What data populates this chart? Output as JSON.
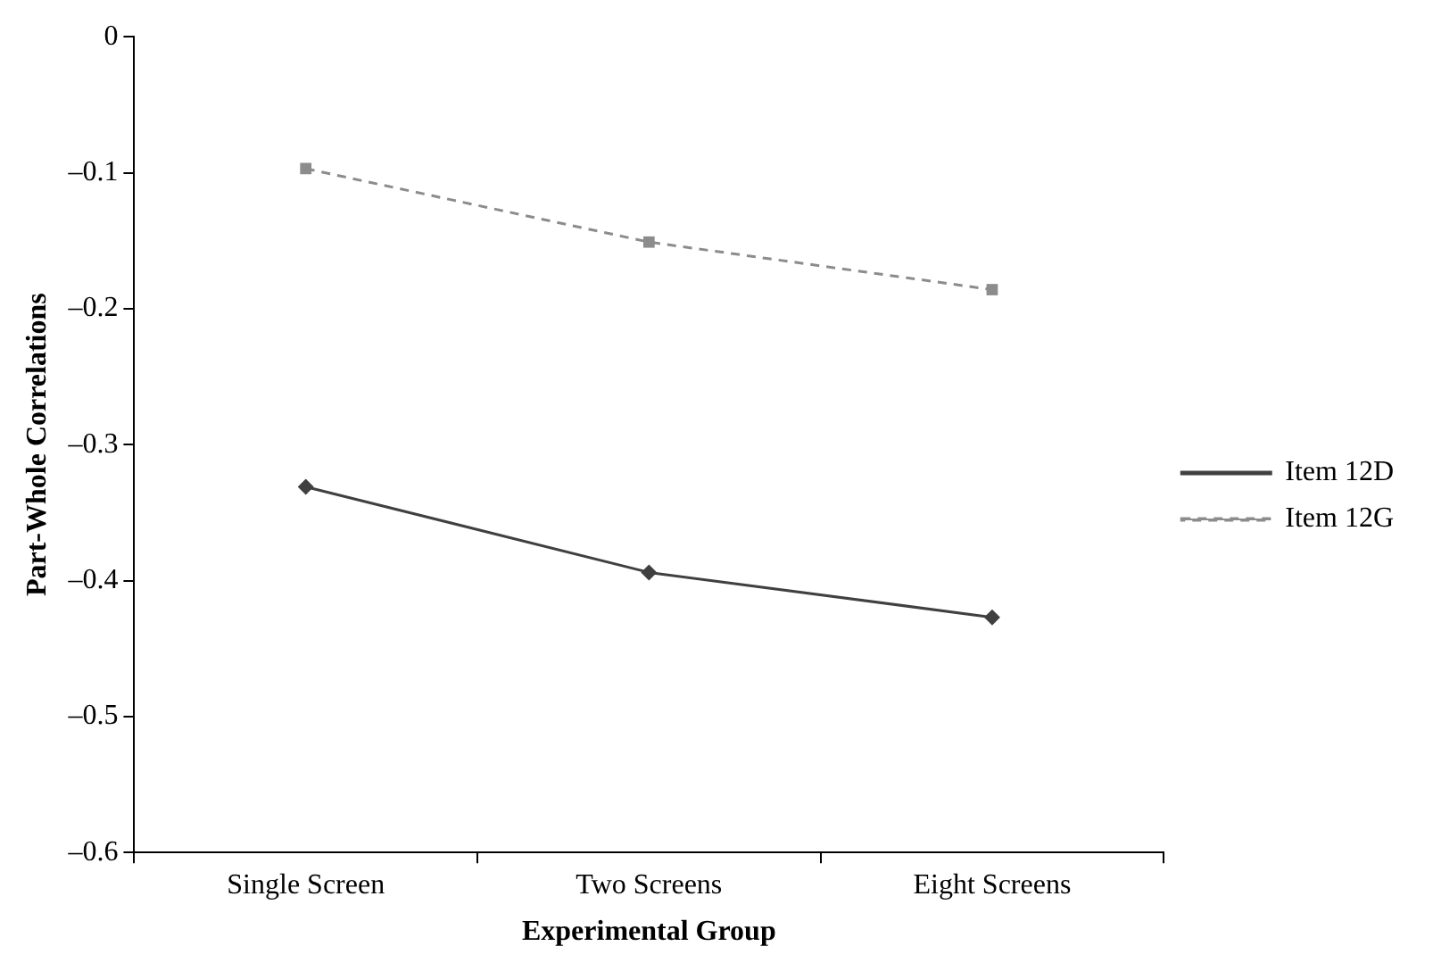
{
  "chart_data": {
    "type": "line",
    "xlabel": "Experimental Group",
    "ylabel": "Part-Whole Correlations",
    "categories": [
      "Single Screen",
      "Two Screens",
      "Eight Screens"
    ],
    "series": [
      {
        "name": "Item 12D",
        "color": "#404040",
        "values": [
          -0.331,
          -0.394,
          -0.427
        ],
        "marker": "diamond",
        "line_style": "solid"
      },
      {
        "name": "Item 12G",
        "color": "#8c8c8c",
        "values": [
          -0.097,
          -0.151,
          -0.186
        ],
        "marker": "square",
        "line_style": "dashed"
      }
    ],
    "ylim": [
      -0.6,
      0
    ],
    "yticks": [
      {
        "value": -0.6,
        "label": "–0.6"
      },
      {
        "value": -0.5,
        "label": "–0.5"
      },
      {
        "value": -0.4,
        "label": "–0.4"
      },
      {
        "value": -0.3,
        "label": "–0.3"
      },
      {
        "value": -0.2,
        "label": "–0.2"
      },
      {
        "value": -0.1,
        "label": "–0.1"
      },
      0
    ],
    "grid": false,
    "legend": "right"
  }
}
